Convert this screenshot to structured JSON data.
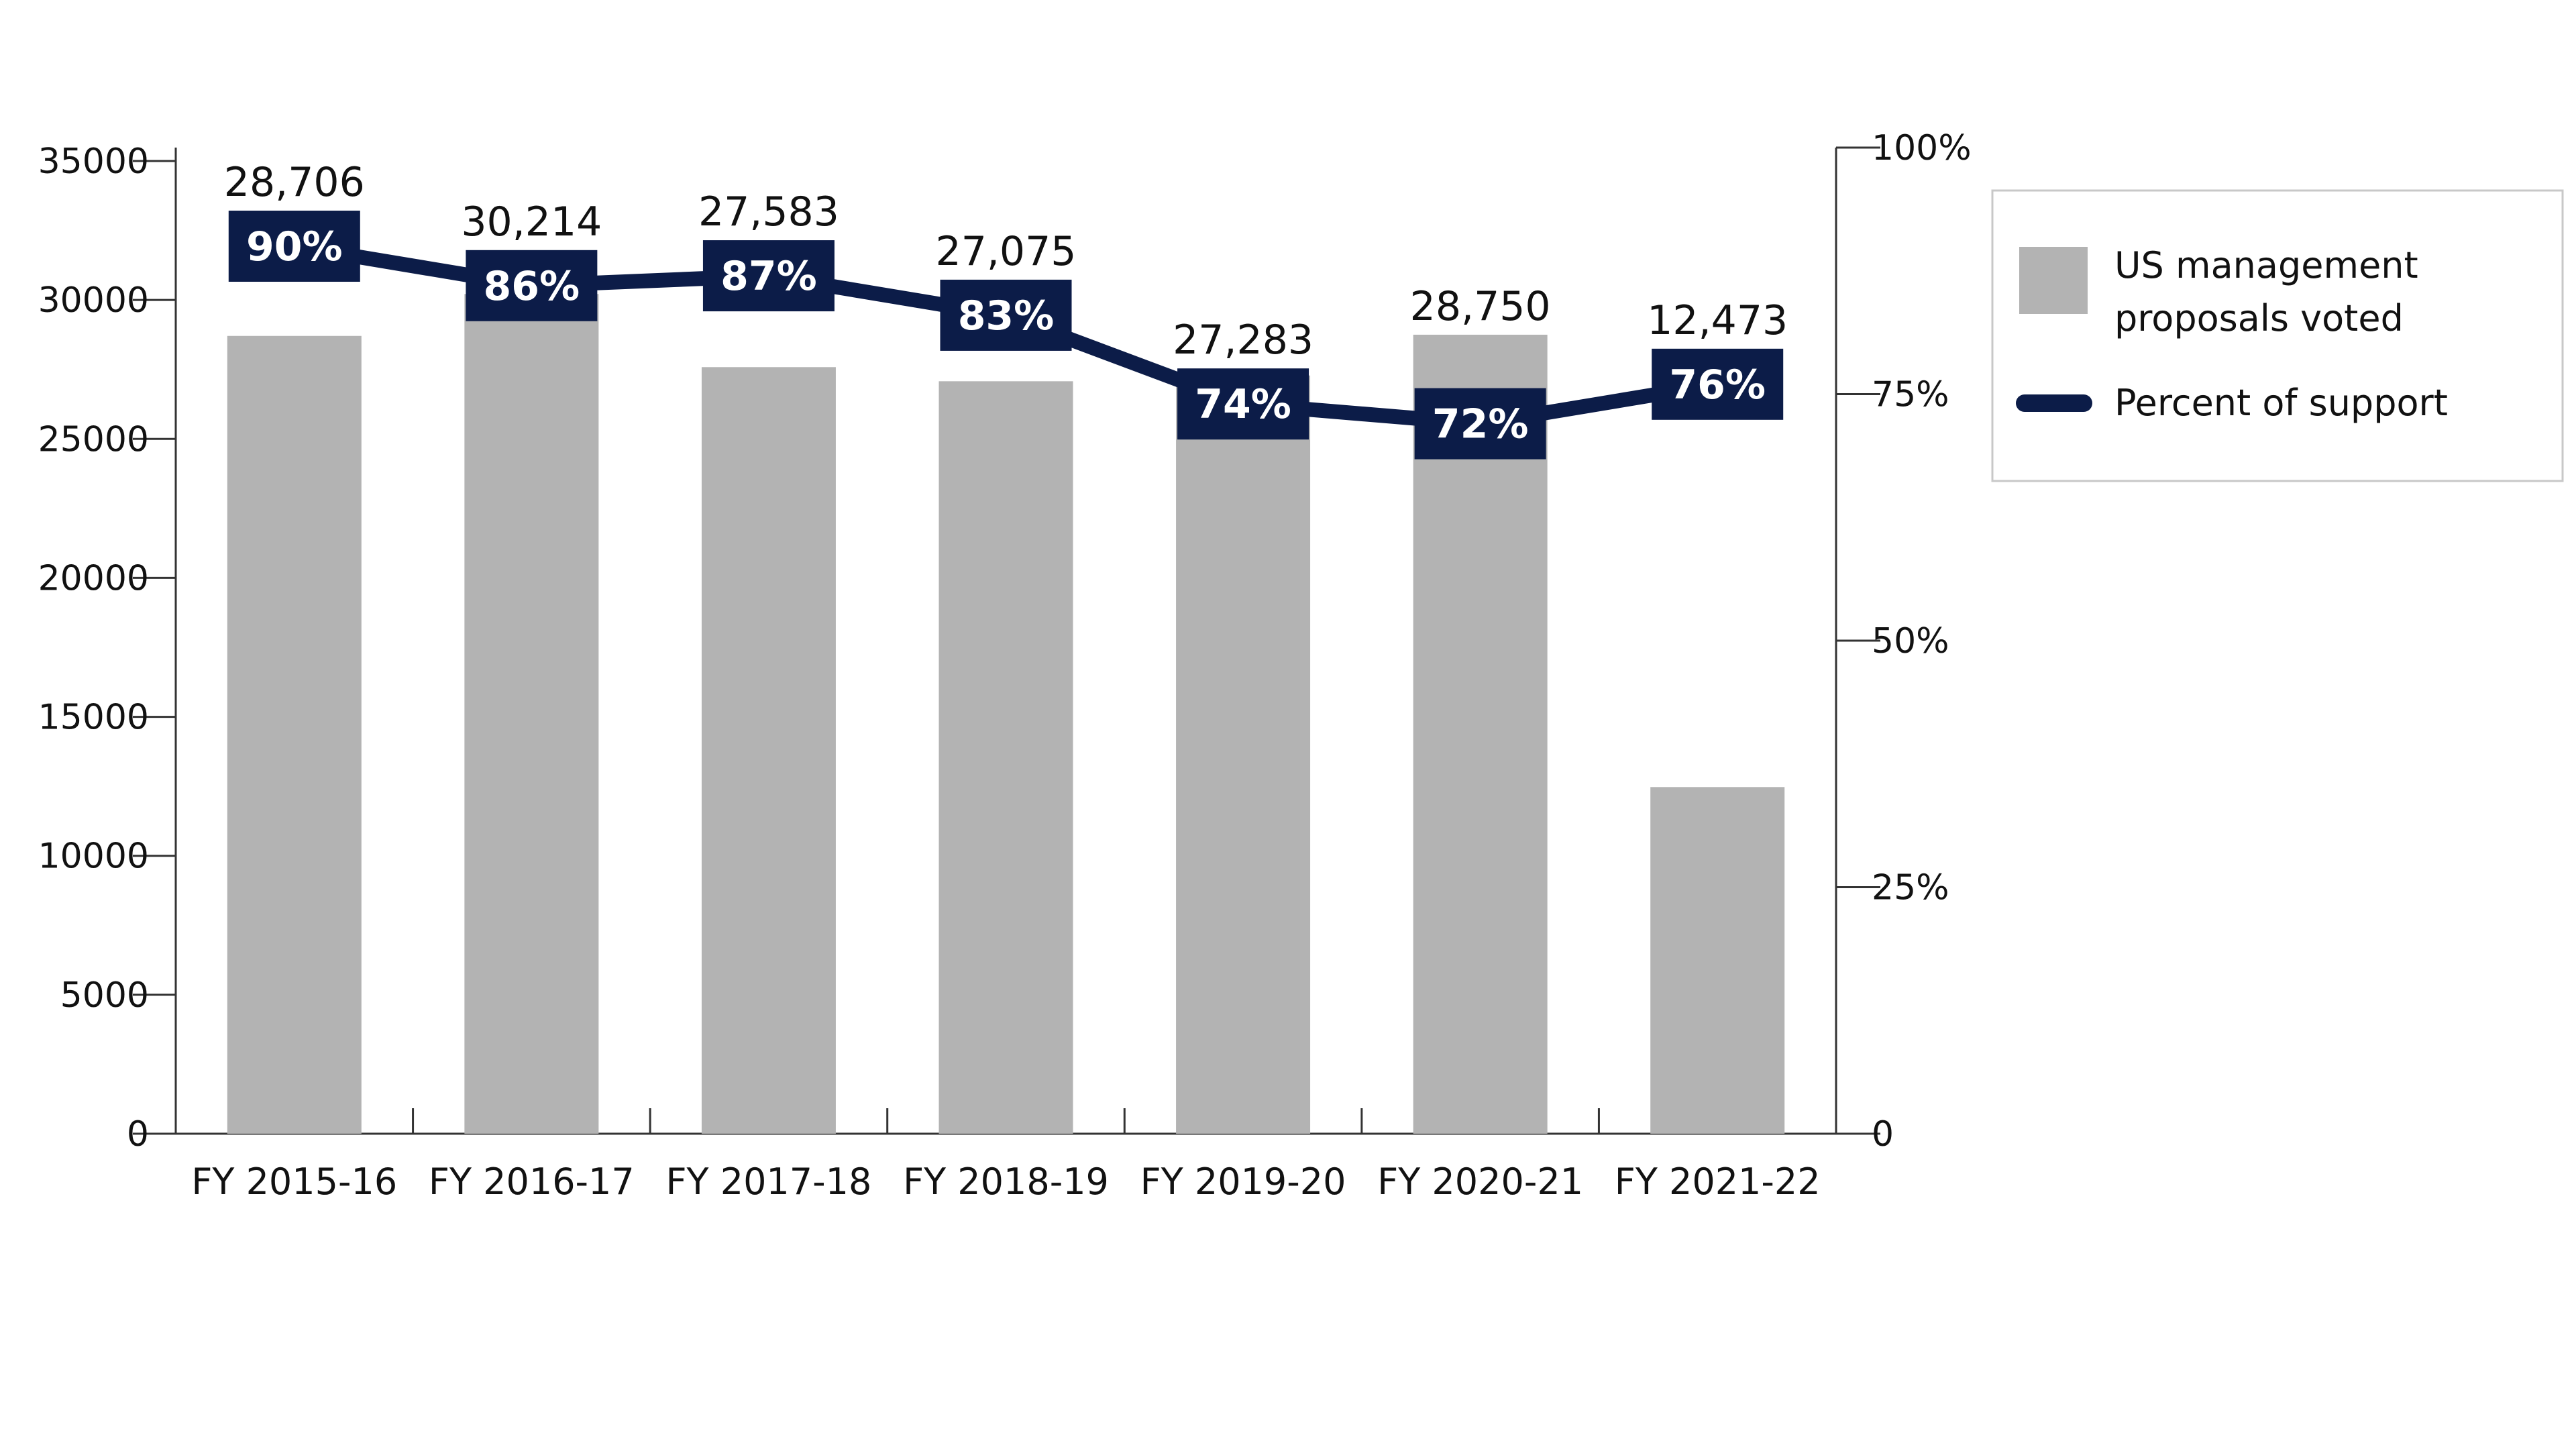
{
  "chart_data": {
    "type": "bar",
    "categories": [
      "FY 2015-16",
      "FY 2016-17",
      "FY 2017-18",
      "FY 2018-19",
      "FY 2019-20",
      "FY 2020-21",
      "FY 2021-22"
    ],
    "series": [
      {
        "name": "US management proposals voted",
        "type": "bar",
        "axis": "left",
        "values": [
          28706,
          30214,
          27583,
          27075,
          27283,
          28750,
          12473
        ],
        "labels": [
          "28,706",
          "30,214",
          "27,583",
          "27,075",
          "27,283",
          "28,750",
          "12,473"
        ],
        "color": "#b3b3b3"
      },
      {
        "name": "Percent of support",
        "type": "line",
        "axis": "right",
        "values": [
          90,
          86,
          87,
          83,
          74,
          72,
          76
        ],
        "labels": [
          "90%",
          "86%",
          "87%",
          "83%",
          "74%",
          "72%",
          "76%"
        ],
        "color": "#0c1c48"
      }
    ],
    "y_left": {
      "range": [
        0,
        35000
      ],
      "ticks": [
        "0",
        "5000",
        "10000",
        "15000",
        "20000",
        "25000",
        "30000",
        "35000"
      ]
    },
    "y_right": {
      "range": [
        0,
        100
      ],
      "ticks": [
        "0",
        "25%",
        "50%",
        "75%",
        "100%"
      ]
    },
    "grid": false,
    "legend": {
      "position": "right",
      "entries": [
        "US management proposals voted",
        "Percent of support"
      ],
      "bar_entry_lines": [
        "US management",
        "proposals voted"
      ],
      "line_entry": "Percent of support"
    }
  }
}
